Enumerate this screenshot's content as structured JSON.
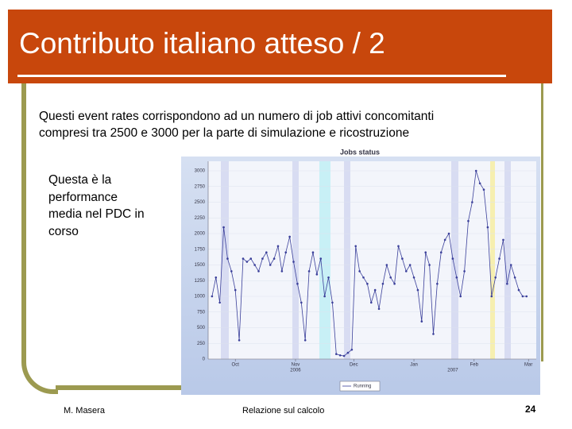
{
  "header": {
    "title": "Contributo italiano atteso / 2"
  },
  "body": {
    "lines": [
      "Questi event rates corrispondono ad un numero di job attivi concomitanti",
      "compresi tra 2500 e 3000 per la parte di simulazione e ricostruzione"
    ],
    "side_note": "Questa è la performance media nel PDC in corso"
  },
  "chart": {
    "type": "line",
    "title": "Jobs status",
    "x": [
      -12,
      -10,
      -8,
      -6,
      -4,
      -2,
      0,
      2,
      4,
      6,
      8,
      10,
      12,
      14,
      16,
      18,
      20,
      22,
      24,
      26,
      28,
      30,
      32,
      34,
      36,
      38,
      40,
      42,
      44,
      46,
      48,
      50,
      52,
      54,
      56,
      58,
      60,
      62,
      64,
      66,
      68,
      70,
      72,
      74,
      76,
      78,
      80,
      82,
      84,
      86,
      88,
      90,
      92,
      94,
      96,
      98,
      100,
      102,
      104,
      106,
      108,
      110,
      112,
      114,
      116,
      118,
      120,
      122,
      124,
      126,
      128,
      130,
      132,
      134,
      136,
      138,
      140,
      142,
      144,
      146,
      148,
      150
    ],
    "series": [
      {
        "name": "Running",
        "color": "#3a3f9a",
        "values": [
          1000,
          1300,
          900,
          2100,
          1600,
          1400,
          1100,
          300,
          1600,
          1550,
          1600,
          1500,
          1400,
          1600,
          1700,
          1500,
          1600,
          1800,
          1400,
          1700,
          1950,
          1550,
          1200,
          900,
          300,
          1400,
          1700,
          1350,
          1600,
          1000,
          1300,
          900,
          80,
          60,
          50,
          100,
          150,
          1800,
          1400,
          1300,
          1200,
          900,
          1100,
          800,
          1200,
          1500,
          1300,
          1200,
          1800,
          1600,
          1400,
          1500,
          1300,
          1100,
          600,
          1700,
          1500,
          400,
          1200,
          1700,
          1900,
          2000,
          1600,
          1300,
          1000,
          1400,
          2200,
          2500,
          3000,
          2800,
          2700,
          2100,
          1000,
          1300,
          1600,
          1900,
          1200,
          1500,
          1300,
          1100,
          1000,
          1000
        ]
      }
    ],
    "xlim": [
      -14,
      155
    ],
    "xticks": [
      {
        "value": 0,
        "label": "Oct"
      },
      {
        "value": 31,
        "label": "Nov"
      },
      {
        "value": 61,
        "label": "Dec"
      },
      {
        "value": 92,
        "label": "Jan"
      },
      {
        "value": 123,
        "label": "Feb"
      },
      {
        "value": 151,
        "label": "Mar"
      }
    ],
    "year_labels": [
      {
        "value": 31,
        "label": "2006"
      },
      {
        "value": 112,
        "label": "2007"
      }
    ],
    "ylim": [
      0,
      3000
    ],
    "yticks": [
      0,
      250,
      500,
      750,
      1000,
      1250,
      1500,
      1750,
      2000,
      2250,
      2500,
      2750,
      3000
    ],
    "grid": true
  },
  "footer": {
    "author": "M. Masera",
    "center": "Relazione sul calcolo",
    "page": "24"
  }
}
